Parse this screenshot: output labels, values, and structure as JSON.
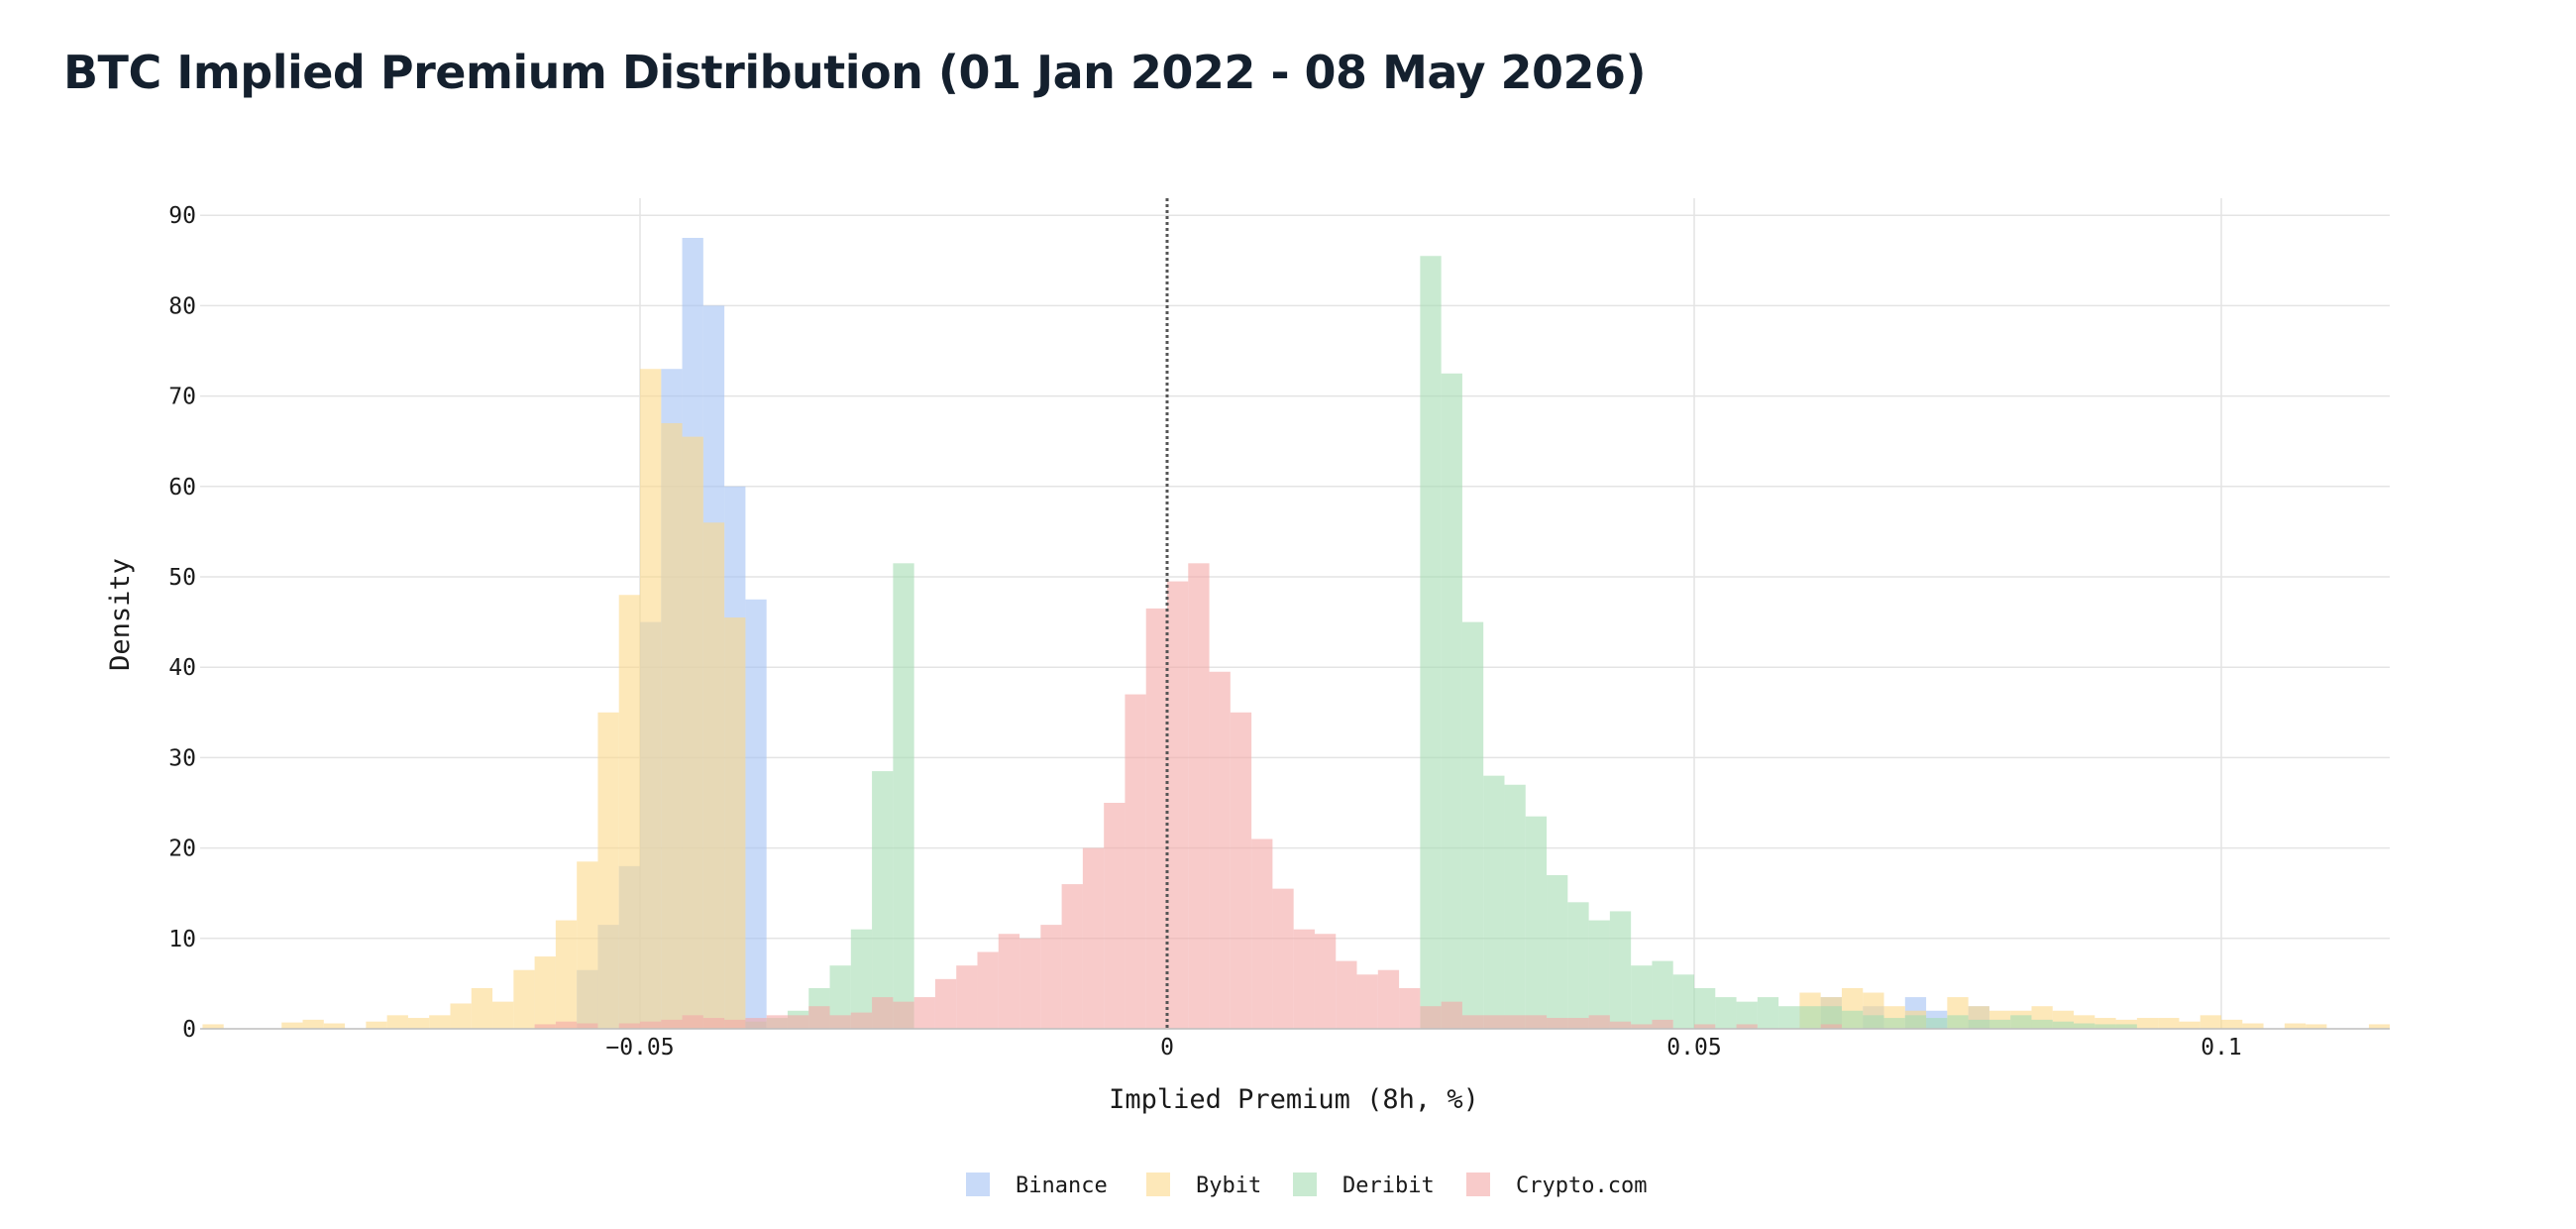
{
  "chart_data": {
    "type": "bar",
    "title": "BTC Implied Premium Distribution (01 Jan 2022 - 08 May 2026)",
    "xlabel": "Implied Premium (8h, %)",
    "ylabel": "Density",
    "xlim": [
      -0.0915,
      0.116
    ],
    "ylim": [
      0,
      92
    ],
    "x_ticks": [
      {
        "value": -0.05,
        "label": "−0.05"
      },
      {
        "value": 0,
        "label": "0"
      },
      {
        "value": 0.05,
        "label": "0.05"
      },
      {
        "value": 0.1,
        "label": "0.1"
      }
    ],
    "y_ticks": [
      {
        "value": 0,
        "label": "0"
      },
      {
        "value": 10,
        "label": "10"
      },
      {
        "value": 20,
        "label": "20"
      },
      {
        "value": 30,
        "label": "30"
      },
      {
        "value": 40,
        "label": "40"
      },
      {
        "value": 50,
        "label": "50"
      },
      {
        "value": 60,
        "label": "60"
      },
      {
        "value": 70,
        "label": "70"
      },
      {
        "value": 80,
        "label": "80"
      },
      {
        "value": 90,
        "label": "90"
      }
    ],
    "reference_line": {
      "x": 0,
      "style": "dotted",
      "color": "#555555"
    },
    "grid": true,
    "legend_position": "bottom-center",
    "bin_width": 0.002,
    "series": [
      {
        "name": "Binance",
        "color": "#a4c2f4",
        "bins": [
          {
            "x0": -0.056,
            "h": 6.5
          },
          {
            "x0": -0.054,
            "h": 11.5
          },
          {
            "x0": -0.052,
            "h": 18.0
          },
          {
            "x0": -0.05,
            "h": 45.0
          },
          {
            "x0": -0.048,
            "h": 73.0
          },
          {
            "x0": -0.046,
            "h": 87.5
          },
          {
            "x0": -0.044,
            "h": 80.0
          },
          {
            "x0": -0.042,
            "h": 60.0
          },
          {
            "x0": -0.04,
            "h": 47.5
          },
          {
            "x0": 0.062,
            "h": 3.5
          },
          {
            "x0": 0.066,
            "h": 2.5
          },
          {
            "x0": 0.07,
            "h": 3.5
          },
          {
            "x0": 0.072,
            "h": 2.0
          },
          {
            "x0": 0.076,
            "h": 2.5
          }
        ]
      },
      {
        "name": "Bybit",
        "color": "#fcd98a",
        "bins": [
          {
            "x0": -0.0915,
            "h": 0.5
          },
          {
            "x0": -0.084,
            "h": 0.7
          },
          {
            "x0": -0.082,
            "h": 1.0
          },
          {
            "x0": -0.08,
            "h": 0.6
          },
          {
            "x0": -0.076,
            "h": 0.8
          },
          {
            "x0": -0.074,
            "h": 1.5
          },
          {
            "x0": -0.072,
            "h": 1.2
          },
          {
            "x0": -0.07,
            "h": 1.5
          },
          {
            "x0": -0.068,
            "h": 2.8
          },
          {
            "x0": -0.066,
            "h": 4.5
          },
          {
            "x0": -0.064,
            "h": 3.0
          },
          {
            "x0": -0.062,
            "h": 6.5
          },
          {
            "x0": -0.06,
            "h": 8.0
          },
          {
            "x0": -0.058,
            "h": 12.0
          },
          {
            "x0": -0.056,
            "h": 18.5
          },
          {
            "x0": -0.054,
            "h": 35.0
          },
          {
            "x0": -0.052,
            "h": 48.0
          },
          {
            "x0": -0.05,
            "h": 73.0
          },
          {
            "x0": -0.048,
            "h": 67.0
          },
          {
            "x0": -0.046,
            "h": 65.5
          },
          {
            "x0": -0.044,
            "h": 56.0
          },
          {
            "x0": -0.042,
            "h": 45.5
          },
          {
            "x0": 0.06,
            "h": 4.0
          },
          {
            "x0": 0.062,
            "h": 3.5
          },
          {
            "x0": 0.064,
            "h": 4.5
          },
          {
            "x0": 0.066,
            "h": 4.0
          },
          {
            "x0": 0.068,
            "h": 2.5
          },
          {
            "x0": 0.07,
            "h": 2.0
          },
          {
            "x0": 0.074,
            "h": 3.5
          },
          {
            "x0": 0.076,
            "h": 2.5
          },
          {
            "x0": 0.078,
            "h": 2.0
          },
          {
            "x0": 0.08,
            "h": 2.0
          },
          {
            "x0": 0.082,
            "h": 2.5
          },
          {
            "x0": 0.084,
            "h": 2.0
          },
          {
            "x0": 0.086,
            "h": 1.5
          },
          {
            "x0": 0.088,
            "h": 1.2
          },
          {
            "x0": 0.09,
            "h": 1.0
          },
          {
            "x0": 0.092,
            "h": 1.2
          },
          {
            "x0": 0.094,
            "h": 1.2
          },
          {
            "x0": 0.096,
            "h": 0.8
          },
          {
            "x0": 0.098,
            "h": 1.5
          },
          {
            "x0": 0.1,
            "h": 1.0
          },
          {
            "x0": 0.102,
            "h": 0.6
          },
          {
            "x0": 0.106,
            "h": 0.6
          },
          {
            "x0": 0.108,
            "h": 0.5
          },
          {
            "x0": 0.114,
            "h": 0.5
          }
        ]
      },
      {
        "name": "Deribit",
        "color": "#a5dcb3",
        "bins": [
          {
            "x0": -0.04,
            "h": 0.8
          },
          {
            "x0": -0.038,
            "h": 1.2
          },
          {
            "x0": -0.036,
            "h": 2.0
          },
          {
            "x0": -0.034,
            "h": 4.5
          },
          {
            "x0": -0.032,
            "h": 7.0
          },
          {
            "x0": -0.03,
            "h": 11.0
          },
          {
            "x0": -0.028,
            "h": 28.5
          },
          {
            "x0": -0.026,
            "h": 51.5
          },
          {
            "x0": 0.024,
            "h": 85.5
          },
          {
            "x0": 0.026,
            "h": 72.5
          },
          {
            "x0": 0.028,
            "h": 45.0
          },
          {
            "x0": 0.03,
            "h": 28.0
          },
          {
            "x0": 0.032,
            "h": 27.0
          },
          {
            "x0": 0.034,
            "h": 23.5
          },
          {
            "x0": 0.036,
            "h": 17.0
          },
          {
            "x0": 0.038,
            "h": 14.0
          },
          {
            "x0": 0.04,
            "h": 12.0
          },
          {
            "x0": 0.042,
            "h": 13.0
          },
          {
            "x0": 0.044,
            "h": 7.0
          },
          {
            "x0": 0.046,
            "h": 7.5
          },
          {
            "x0": 0.048,
            "h": 6.0
          },
          {
            "x0": 0.05,
            "h": 4.5
          },
          {
            "x0": 0.052,
            "h": 3.5
          },
          {
            "x0": 0.054,
            "h": 3.0
          },
          {
            "x0": 0.056,
            "h": 3.5
          },
          {
            "x0": 0.058,
            "h": 2.5
          },
          {
            "x0": 0.06,
            "h": 2.5
          },
          {
            "x0": 0.062,
            "h": 2.5
          },
          {
            "x0": 0.064,
            "h": 2.0
          },
          {
            "x0": 0.066,
            "h": 1.5
          },
          {
            "x0": 0.068,
            "h": 1.2
          },
          {
            "x0": 0.07,
            "h": 1.5
          },
          {
            "x0": 0.072,
            "h": 1.2
          },
          {
            "x0": 0.074,
            "h": 1.5
          },
          {
            "x0": 0.076,
            "h": 1.0
          },
          {
            "x0": 0.078,
            "h": 1.0
          },
          {
            "x0": 0.08,
            "h": 1.5
          },
          {
            "x0": 0.082,
            "h": 1.0
          },
          {
            "x0": 0.084,
            "h": 0.8
          },
          {
            "x0": 0.086,
            "h": 0.6
          },
          {
            "x0": 0.088,
            "h": 0.5
          },
          {
            "x0": 0.09,
            "h": 0.5
          }
        ]
      },
      {
        "name": "Crypto.com",
        "color": "#f4a9a6",
        "bins": [
          {
            "x0": -0.06,
            "h": 0.5
          },
          {
            "x0": -0.058,
            "h": 0.8
          },
          {
            "x0": -0.056,
            "h": 0.6
          },
          {
            "x0": -0.052,
            "h": 0.6
          },
          {
            "x0": -0.05,
            "h": 0.8
          },
          {
            "x0": -0.048,
            "h": 1.0
          },
          {
            "x0": -0.046,
            "h": 1.5
          },
          {
            "x0": -0.044,
            "h": 1.2
          },
          {
            "x0": -0.042,
            "h": 1.0
          },
          {
            "x0": -0.04,
            "h": 1.2
          },
          {
            "x0": -0.038,
            "h": 1.5
          },
          {
            "x0": -0.036,
            "h": 1.5
          },
          {
            "x0": -0.034,
            "h": 2.5
          },
          {
            "x0": -0.032,
            "h": 1.5
          },
          {
            "x0": -0.03,
            "h": 1.8
          },
          {
            "x0": -0.028,
            "h": 3.5
          },
          {
            "x0": -0.026,
            "h": 3.0
          },
          {
            "x0": -0.024,
            "h": 3.5
          },
          {
            "x0": -0.022,
            "h": 5.5
          },
          {
            "x0": -0.02,
            "h": 7.0
          },
          {
            "x0": -0.018,
            "h": 8.5
          },
          {
            "x0": -0.016,
            "h": 10.5
          },
          {
            "x0": -0.014,
            "h": 10.0
          },
          {
            "x0": -0.012,
            "h": 11.5
          },
          {
            "x0": -0.01,
            "h": 16.0
          },
          {
            "x0": -0.008,
            "h": 20.0
          },
          {
            "x0": -0.006,
            "h": 25.0
          },
          {
            "x0": -0.004,
            "h": 37.0
          },
          {
            "x0": -0.002,
            "h": 46.5
          },
          {
            "x0": 0.0,
            "h": 49.5
          },
          {
            "x0": 0.002,
            "h": 51.5
          },
          {
            "x0": 0.004,
            "h": 39.5
          },
          {
            "x0": 0.006,
            "h": 35.0
          },
          {
            "x0": 0.008,
            "h": 21.0
          },
          {
            "x0": 0.01,
            "h": 15.5
          },
          {
            "x0": 0.012,
            "h": 11.0
          },
          {
            "x0": 0.014,
            "h": 10.5
          },
          {
            "x0": 0.016,
            "h": 7.5
          },
          {
            "x0": 0.018,
            "h": 6.0
          },
          {
            "x0": 0.02,
            "h": 6.5
          },
          {
            "x0": 0.022,
            "h": 4.5
          },
          {
            "x0": 0.024,
            "h": 2.5
          },
          {
            "x0": 0.026,
            "h": 3.0
          },
          {
            "x0": 0.028,
            "h": 1.5
          },
          {
            "x0": 0.03,
            "h": 1.5
          },
          {
            "x0": 0.032,
            "h": 1.5
          },
          {
            "x0": 0.034,
            "h": 1.5
          },
          {
            "x0": 0.036,
            "h": 1.2
          },
          {
            "x0": 0.038,
            "h": 1.2
          },
          {
            "x0": 0.04,
            "h": 1.5
          },
          {
            "x0": 0.042,
            "h": 0.8
          },
          {
            "x0": 0.044,
            "h": 0.5
          },
          {
            "x0": 0.046,
            "h": 1.0
          },
          {
            "x0": 0.05,
            "h": 0.5
          },
          {
            "x0": 0.054,
            "h": 0.5
          },
          {
            "x0": 0.062,
            "h": 0.5
          }
        ]
      }
    ]
  }
}
